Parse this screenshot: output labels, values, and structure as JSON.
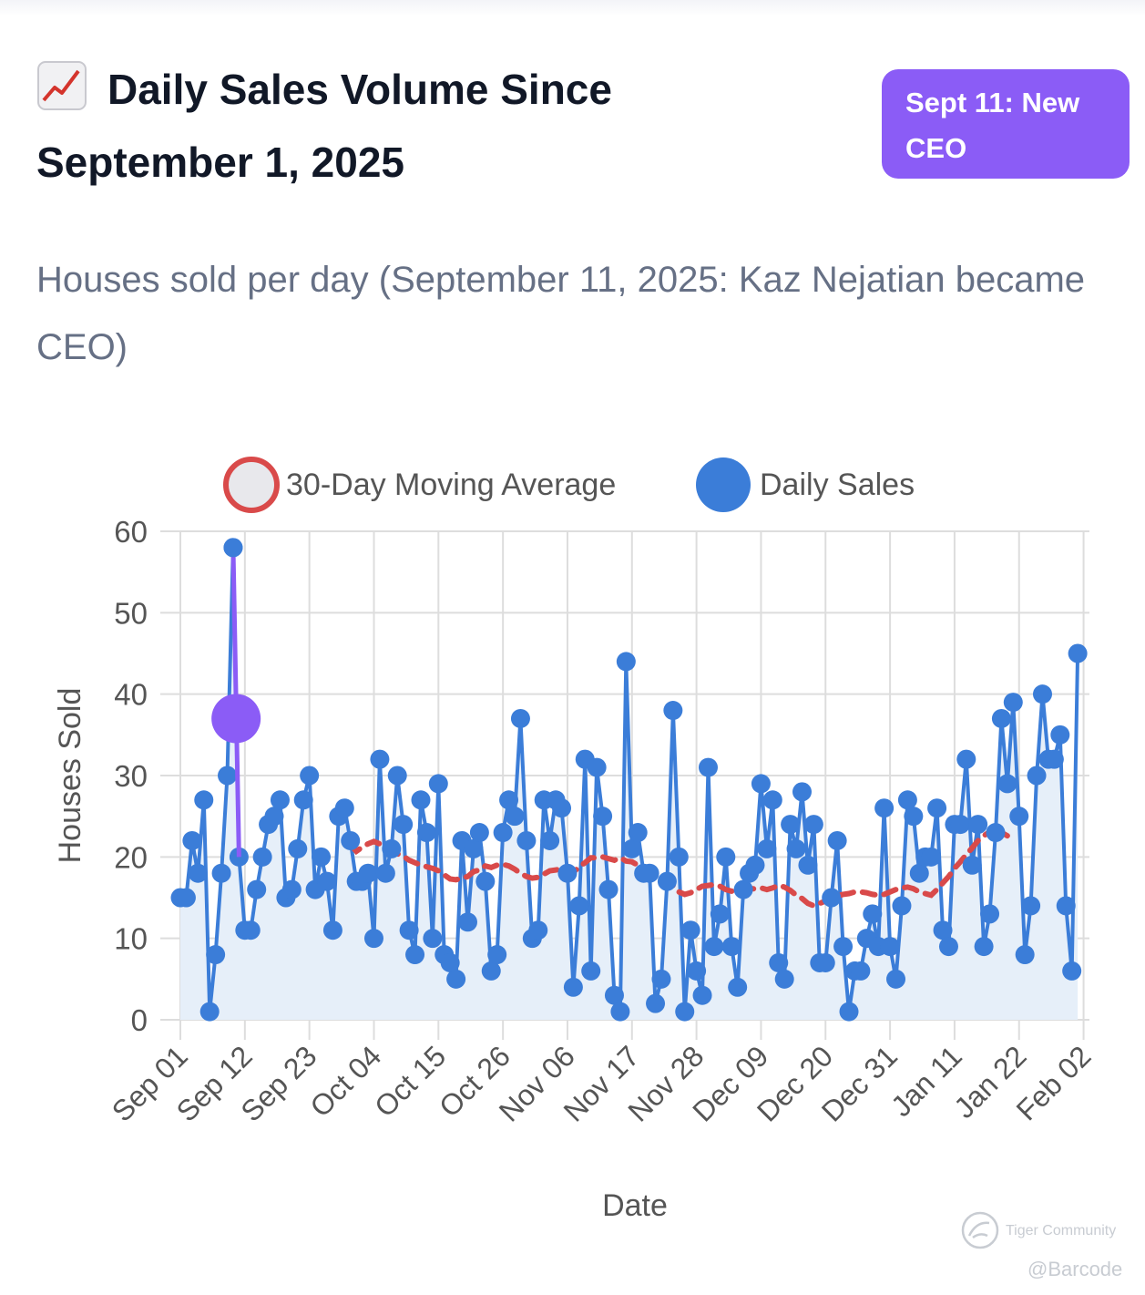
{
  "header": {
    "title": "Daily Sales Volume Since September 1, 2025",
    "emoji_icon": "chart-increasing-icon",
    "badge_label": "Sept 11: New CEO",
    "subtitle": "Houses sold per day (September 11, 2025: Kaz Nejatian became CEO)"
  },
  "colors": {
    "daily_sales": "#3b7dd8",
    "daily_fill": "#e6eff9",
    "moving_average": "#d94a4a",
    "ceo_marker": "#8b5cf6",
    "grid": "#dddddd",
    "text": "#555555"
  },
  "chart_data": {
    "type": "line",
    "title": "",
    "xlabel": "Date",
    "ylabel": "Houses Sold",
    "ylim": [
      0,
      60
    ],
    "yticks": [
      0,
      10,
      20,
      30,
      40,
      50,
      60
    ],
    "grid": true,
    "legend_position": "top-center",
    "x_start": "2025-09-01",
    "xlim_days": [
      0,
      155
    ],
    "xticks": [
      {
        "day": 0,
        "label": "Sep 01"
      },
      {
        "day": 11,
        "label": "Sep 12"
      },
      {
        "day": 22,
        "label": "Sep 23"
      },
      {
        "day": 33,
        "label": "Oct 04"
      },
      {
        "day": 44,
        "label": "Oct 15"
      },
      {
        "day": 55,
        "label": "Oct 26"
      },
      {
        "day": 66,
        "label": "Nov 06"
      },
      {
        "day": 77,
        "label": "Nov 17"
      },
      {
        "day": 88,
        "label": "Nov 28"
      },
      {
        "day": 99,
        "label": "Dec 09"
      },
      {
        "day": 110,
        "label": "Dec 20"
      },
      {
        "day": 121,
        "label": "Dec 31"
      },
      {
        "day": 132,
        "label": "Jan 11"
      },
      {
        "day": 143,
        "label": "Jan 22"
      },
      {
        "day": 154,
        "label": "Feb 02"
      }
    ],
    "series": [
      {
        "name": "Daily Sales",
        "style": "line-markers-filled",
        "values": [
          15,
          15,
          22,
          18,
          27,
          1,
          8,
          18,
          30,
          58,
          20,
          11,
          11,
          16,
          20,
          24,
          25,
          27,
          15,
          16,
          21,
          27,
          30,
          16,
          20,
          17,
          11,
          25,
          26,
          22,
          17,
          17,
          18,
          10,
          32,
          18,
          21,
          30,
          24,
          11,
          8,
          27,
          23,
          10,
          29,
          8,
          7,
          5,
          22,
          12,
          21,
          23,
          17,
          6,
          8,
          23,
          27,
          25,
          37,
          22,
          10,
          11,
          27,
          22,
          27,
          26,
          18,
          4,
          14,
          32,
          6,
          31,
          25,
          16,
          3,
          1,
          44,
          21,
          23,
          18,
          18,
          2,
          5,
          17,
          38,
          20,
          1,
          11,
          6,
          3,
          31,
          9,
          13,
          20,
          9,
          4,
          16,
          18,
          19,
          29,
          21,
          27,
          7,
          5,
          24,
          21,
          28,
          19,
          24,
          7,
          7,
          15,
          22,
          9,
          1,
          6,
          6,
          10,
          13,
          9,
          26,
          9,
          5,
          14,
          27,
          25,
          18,
          20,
          20,
          26,
          11,
          9,
          24,
          24,
          32,
          19,
          24,
          9,
          13,
          23,
          37,
          29,
          39,
          25,
          8,
          14,
          30,
          40,
          32,
          32,
          35,
          14,
          6,
          45
        ]
      },
      {
        "name": "30-Day Moving Average",
        "style": "dashed",
        "start_day": 29,
        "values": [
          21.5,
          20.7,
          21.2,
          21.6,
          21.9,
          21.6,
          21.0,
          20.8,
          20.4,
          20.1,
          19.6,
          19.3,
          19.0,
          18.8,
          18.6,
          18.3,
          17.8,
          17.3,
          17.2,
          17.4,
          17.6,
          18.2,
          18.4,
          18.9,
          18.7,
          19.0,
          19.1,
          18.9,
          18.5,
          18.0,
          17.6,
          17.4,
          17.5,
          17.9,
          18.3,
          18.4,
          18.5,
          18.6,
          18.1,
          18.8,
          19.3,
          19.9,
          19.9,
          20.0,
          19.8,
          19.6,
          19.9,
          19.5,
          19.4,
          19.0,
          18.6,
          18.0,
          17.6,
          17.3,
          16.8,
          16.5,
          15.7,
          15.4,
          15.6,
          16.0,
          16.4,
          16.5,
          16.6,
          16.4,
          16.0,
          15.8,
          15.9,
          16.0,
          16.1,
          16.1,
          16.2,
          16.0,
          16.2,
          16.5,
          16.3,
          15.9,
          15.3,
          14.9,
          14.3,
          14.0,
          14.3,
          14.6,
          15.0,
          15.2,
          15.4,
          15.5,
          15.7,
          15.7,
          15.6,
          15.4,
          15.3,
          15.4,
          15.7,
          16.0,
          16.2,
          16.3,
          16.1,
          15.7,
          15.5,
          15.3,
          16.0,
          16.8,
          17.6,
          18.6,
          19.4,
          20.3,
          21.1,
          22.0,
          22.6,
          23.1,
          23.5,
          23.0,
          22.6
        ]
      }
    ],
    "annotations": [
      {
        "label": "Sept 11: New CEO",
        "day": 10,
        "value": 37,
        "description": "CEO change marker"
      }
    ],
    "legend": [
      "30-Day Moving Average",
      "Daily Sales"
    ]
  },
  "watermark": {
    "brand": "Tiger Community",
    "handle": "@Barcode",
    "logo_icon": "tiger-community-logo-icon"
  }
}
